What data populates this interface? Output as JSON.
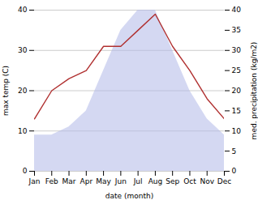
{
  "chart_data": {
    "type": "line",
    "categories": [
      "Jan",
      "Feb",
      "Mar",
      "Apr",
      "May",
      "Jun",
      "Jul",
      "Aug",
      "Sep",
      "Oct",
      "Nov",
      "Dec"
    ],
    "xlabel": "date (month)",
    "ylabel": "max temp (C)",
    "y2label": "med. precipitation (kg/m2)",
    "ylim": [
      0,
      40
    ],
    "yticks": [
      0,
      10,
      20,
      30,
      40
    ],
    "y2lim": [
      0,
      40
    ],
    "y2ticks": [
      0,
      5,
      10,
      15,
      20,
      25,
      30,
      35,
      40
    ],
    "grid": true,
    "series": [
      {
        "type": "area",
        "axis": "y2",
        "color": "#b0b8e8",
        "values": [
          9,
          9,
          11,
          15,
          25,
          35,
          40,
          40,
          30,
          20,
          13,
          9
        ]
      },
      {
        "type": "line",
        "axis": "y",
        "color": "#b03030",
        "values": [
          13,
          20,
          23,
          25,
          31,
          31,
          35,
          39,
          31,
          25,
          18,
          13
        ]
      }
    ]
  }
}
